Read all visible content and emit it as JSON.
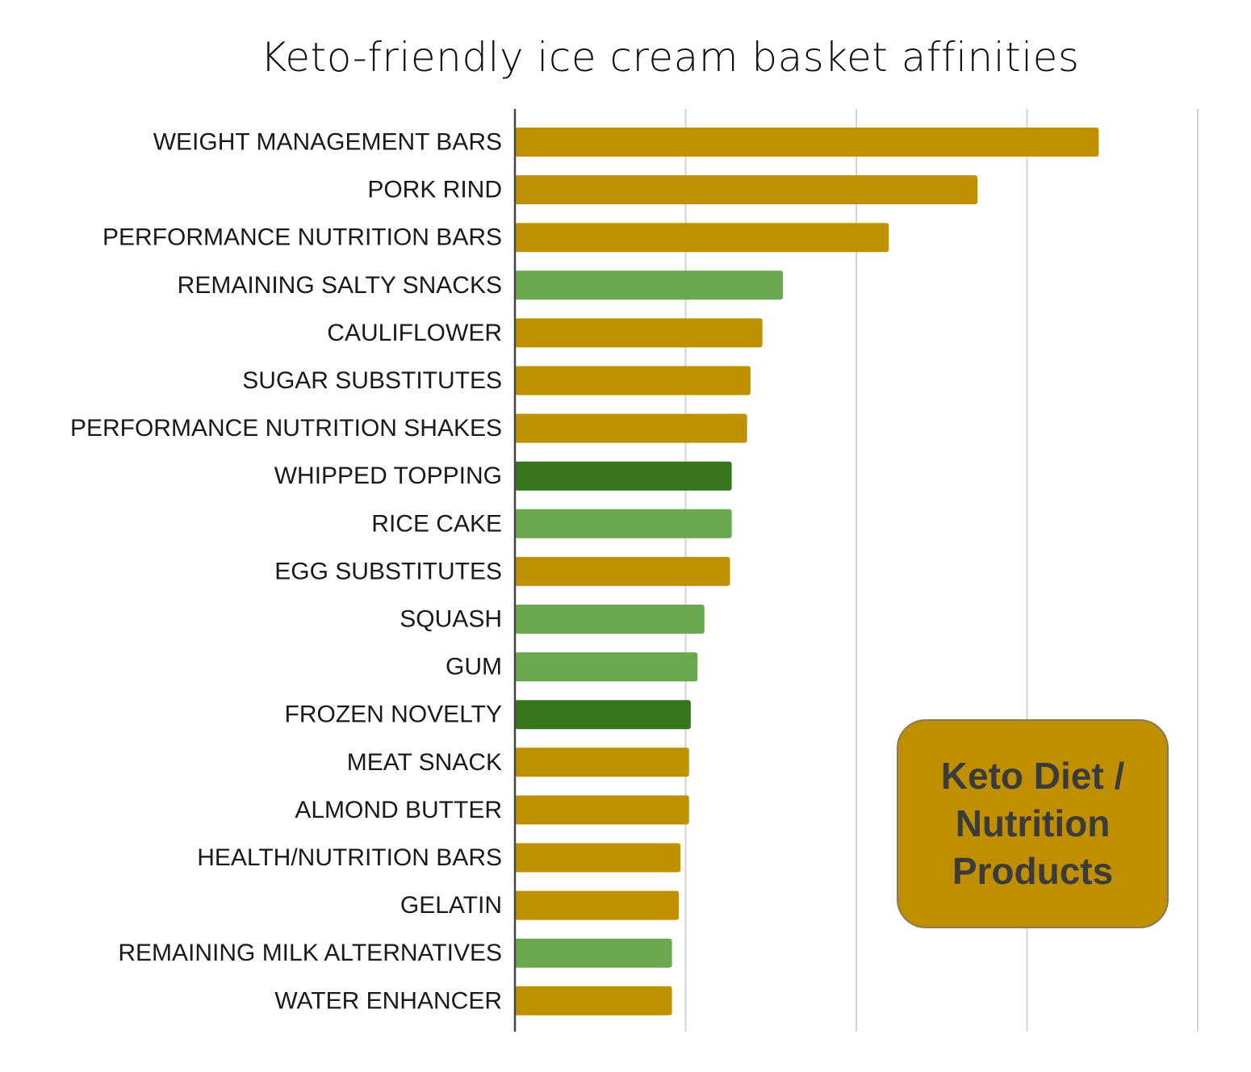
{
  "colors": {
    "keto": "#bf9000",
    "light_green": "#6aa84f",
    "dark_green": "#38761d",
    "grid": "#d3d3d3",
    "axis": "#444444"
  },
  "legend": {
    "text": "Keto Diet / Nutrition Products",
    "color": "#bf9000"
  },
  "chart_data": {
    "type": "bar",
    "orientation": "horizontal",
    "title": "Keto-friendly ice cream basket affinities",
    "xlabel": "",
    "ylabel": "",
    "grid": true,
    "xlim": [
      0,
      4
    ],
    "gridlines": [
      1,
      2,
      3,
      4
    ],
    "categories": [
      "WEIGHT MANAGEMENT BARS",
      "PORK RIND",
      "PERFORMANCE NUTRITION BARS",
      "REMAINING SALTY SNACKS",
      "CAULIFLOWER",
      "SUGAR SUBSTITUTES",
      "PERFORMANCE NUTRITION SHAKES",
      "WHIPPED TOPPING",
      "RICE CAKE",
      "EGG SUBSTITUTES",
      "SQUASH",
      "GUM",
      "FROZEN NOVELTY",
      "MEAT SNACK",
      "ALMOND BUTTER",
      "HEALTH/NUTRITION BARS",
      "GELATIN",
      "REMAINING MILK ALTERNATIVES",
      "WATER ENHANCER"
    ],
    "values": [
      3.42,
      2.71,
      2.19,
      1.57,
      1.45,
      1.38,
      1.36,
      1.27,
      1.27,
      1.26,
      1.11,
      1.07,
      1.03,
      1.02,
      1.02,
      0.97,
      0.96,
      0.92,
      0.92
    ],
    "bar_colors": [
      "#bf9000",
      "#bf9000",
      "#bf9000",
      "#6aa84f",
      "#bf9000",
      "#bf9000",
      "#bf9000",
      "#38761d",
      "#6aa84f",
      "#bf9000",
      "#6aa84f",
      "#6aa84f",
      "#38761d",
      "#bf9000",
      "#bf9000",
      "#bf9000",
      "#bf9000",
      "#6aa84f",
      "#bf9000"
    ]
  }
}
